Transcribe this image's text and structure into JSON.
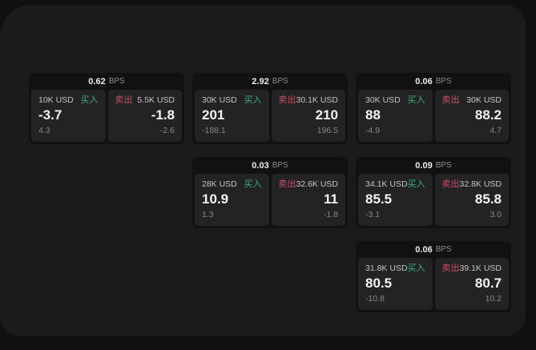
{
  "labels": {
    "bps": "BPS",
    "buy": "买入",
    "sell": "卖出"
  },
  "colors": {
    "buy_green": "#3fae78",
    "sell_red": "#c94f63",
    "panel_bg": "#1b1b1c",
    "card_bg": "#111113",
    "tile_bg": "#232325"
  },
  "cards": [
    {
      "bps": "0.62",
      "buy": {
        "amount": "10K USD",
        "value": "-3.7",
        "delta": "4.3"
      },
      "sell": {
        "amount": "5.5K USD",
        "value": "-1.8",
        "delta": "-2.6"
      }
    },
    {
      "bps": "2.92",
      "buy": {
        "amount": "30K USD",
        "value": "201",
        "delta": "-188.1"
      },
      "sell": {
        "amount": "30.1K USD",
        "value": "210",
        "delta": "196.5"
      }
    },
    {
      "bps": "0.06",
      "buy": {
        "amount": "30K USD",
        "value": "88",
        "delta": "-4.9"
      },
      "sell": {
        "amount": "30K USD",
        "value": "88.2",
        "delta": "4.7"
      }
    },
    {
      "bps": "0.03",
      "buy": {
        "amount": "28K USD",
        "value": "10.9",
        "delta": "1.3"
      },
      "sell": {
        "amount": "32.6K USD",
        "value": "11",
        "delta": "-1.8"
      }
    },
    {
      "bps": "0.09",
      "buy": {
        "amount": "34.1K USD",
        "value": "85.5",
        "delta": "-3.1"
      },
      "sell": {
        "amount": "32.8K USD",
        "value": "85.8",
        "delta": "3.0"
      }
    },
    {
      "bps": "0.06",
      "buy": {
        "amount": "31.8K USD",
        "value": "80.5",
        "delta": "-10.8"
      },
      "sell": {
        "amount": "39.1K USD",
        "value": "80.7",
        "delta": "10.2"
      }
    }
  ]
}
